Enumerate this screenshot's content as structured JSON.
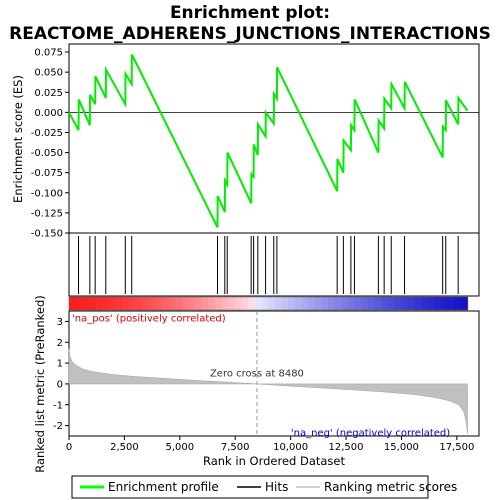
{
  "chart_data": {
    "type": "line",
    "title_line1": "Enrichment plot:",
    "title_line2": "REACTOME_ADHERENS_JUNCTIONS_INTERACTIONS",
    "top_panel": {
      "ylabel": "Enrichment score (ES)",
      "ylim": [
        -0.15,
        0.085
      ],
      "yticks": [
        "0.075",
        "0.050",
        "0.025",
        "0.000",
        "-0.025",
        "-0.050",
        "-0.075",
        "-0.100",
        "-0.125",
        "-0.150"
      ],
      "ytick_values": [
        0.075,
        0.05,
        0.025,
        0.0,
        -0.025,
        -0.05,
        -0.075,
        -0.1,
        -0.125,
        -0.15
      ],
      "series": [
        {
          "name": "Enrichment profile",
          "color": "#00ff00",
          "x": [
            0,
            430,
            440,
            940,
            950,
            1180,
            1190,
            1660,
            1670,
            2540,
            2550,
            2830,
            2840,
            6700,
            6710,
            7030,
            7040,
            7140,
            7150,
            8220,
            8230,
            8330,
            8340,
            8520,
            8530,
            8870,
            8880,
            9240,
            9250,
            9380,
            9390,
            12100,
            12110,
            12380,
            12390,
            12720,
            12730,
            12880,
            12890,
            13960,
            13970,
            14220,
            14230,
            14540,
            14550,
            15140,
            15150,
            16860,
            16870,
            17000,
            17010,
            17560,
            17570,
            17980
          ],
          "y": [
            0.0,
            -0.022,
            0.016,
            -0.016,
            0.022,
            0.01,
            0.045,
            0.018,
            0.053,
            0.01,
            0.048,
            0.035,
            0.072,
            -0.143,
            -0.104,
            -0.124,
            -0.085,
            -0.09,
            -0.05,
            -0.113,
            -0.077,
            -0.08,
            -0.04,
            -0.053,
            -0.015,
            -0.03,
            0.0,
            -0.014,
            0.023,
            0.017,
            0.056,
            -0.098,
            -0.058,
            -0.075,
            -0.035,
            -0.047,
            -0.016,
            -0.022,
            0.016,
            -0.05,
            -0.01,
            -0.02,
            0.017,
            0.005,
            0.035,
            0.005,
            0.038,
            -0.056,
            -0.018,
            -0.022,
            0.015,
            -0.015,
            0.018,
            0.002
          ]
        }
      ]
    },
    "hits": {
      "name": "Hits",
      "positions": [
        430,
        940,
        1180,
        1660,
        2540,
        2830,
        6700,
        7030,
        7140,
        8220,
        8330,
        8520,
        8870,
        9240,
        9380,
        12100,
        12380,
        12720,
        12880,
        13960,
        14220,
        14540,
        15140,
        16860,
        17000,
        17560
      ]
    },
    "bottom_panel": {
      "ylabel": "Ranked list metric (PreRanked)",
      "xlabel": "Rank in Ordered Dataset",
      "ylim": [
        -2.5,
        3.5
      ],
      "yticks": [
        "3",
        "2",
        "1",
        "0",
        "-1",
        "-2"
      ],
      "ytick_values": [
        3,
        2,
        1,
        0,
        -1,
        -2
      ],
      "xlim": [
        0,
        18500
      ],
      "xticks": [
        "0",
        "2,500",
        "5,000",
        "7,500",
        "10,000",
        "12,500",
        "15,000",
        "17,500"
      ],
      "xtick_values": [
        0,
        2500,
        5000,
        7500,
        10000,
        12500,
        15000,
        17500
      ],
      "n_genes": 17980,
      "metric_profile": {
        "name": "Ranking metric scores",
        "x": [
          0,
          50,
          150,
          300,
          600,
          1000,
          2000,
          3000,
          4500,
          6000,
          7500,
          8480,
          9500,
          11000,
          12500,
          14000,
          15500,
          16500,
          17200,
          17600,
          17800,
          17900,
          17980
        ],
        "y": [
          1.7,
          1.3,
          1.05,
          0.9,
          0.72,
          0.6,
          0.45,
          0.35,
          0.25,
          0.15,
          0.07,
          0.0,
          -0.07,
          -0.17,
          -0.27,
          -0.37,
          -0.5,
          -0.65,
          -0.82,
          -1.0,
          -1.3,
          -1.7,
          -2.4
        ]
      },
      "zero_cross_label": "Zero cross at 8480",
      "zero_cross_x": 8480,
      "pos_label": "'na_pos' (positively correlated)",
      "neg_label": "'na_neg' (negatively correlated)"
    },
    "legend": [
      {
        "label": "Enrichment profile",
        "color": "#00ff00"
      },
      {
        "label": "Hits",
        "color": "#000000"
      },
      {
        "label": "Ranking metric scores",
        "color": "#c0c0c0"
      }
    ]
  }
}
